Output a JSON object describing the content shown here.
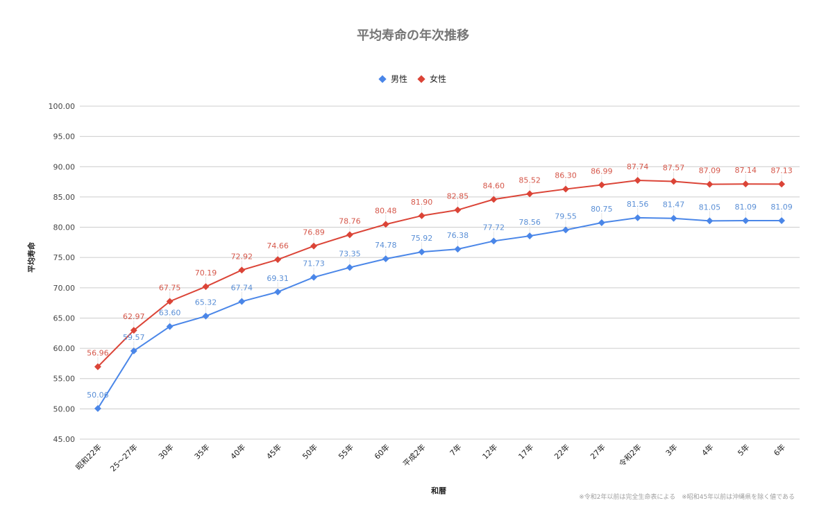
{
  "chart_data": {
    "type": "line",
    "title": "平均寿命の年次推移",
    "xlabel": "和暦",
    "ylabel": "平均寿命",
    "ylim": [
      45,
      100
    ],
    "yticks": [
      "100.00",
      "95.00",
      "90.00",
      "85.00",
      "80.00",
      "75.00",
      "70.00",
      "65.00",
      "60.00",
      "55.00",
      "50.00",
      "45.00"
    ],
    "grid": true,
    "legend_position": "top",
    "categories": [
      "昭和22年",
      "25～27年",
      "30年",
      "35年",
      "40年",
      "45年",
      "50年",
      "55年",
      "60年",
      "平成2年",
      "7年",
      "12年",
      "17年",
      "22年",
      "27年",
      "令和2年",
      "3年",
      "4年",
      "5年",
      "6年"
    ],
    "series": [
      {
        "name": "男性",
        "color": "#4a86e8",
        "values": [
          50.06,
          59.57,
          63.6,
          65.32,
          67.74,
          69.31,
          71.73,
          73.35,
          74.78,
          75.92,
          76.38,
          77.72,
          78.56,
          79.55,
          80.75,
          81.56,
          81.47,
          81.05,
          81.09,
          81.09
        ]
      },
      {
        "name": "女性",
        "color": "#db4437",
        "values": [
          56.96,
          62.97,
          67.75,
          70.19,
          72.92,
          74.66,
          76.89,
          78.76,
          80.48,
          81.9,
          82.85,
          84.6,
          85.52,
          86.3,
          86.99,
          87.74,
          87.57,
          87.09,
          87.14,
          87.13
        ]
      }
    ],
    "footnote": "※令和2年以前は完全生命表による　※昭和45年以前は沖縄県を除く値である"
  },
  "legend": [
    {
      "label": "男性",
      "color": "#4a86e8"
    },
    {
      "label": "女性",
      "color": "#db4437"
    }
  ]
}
